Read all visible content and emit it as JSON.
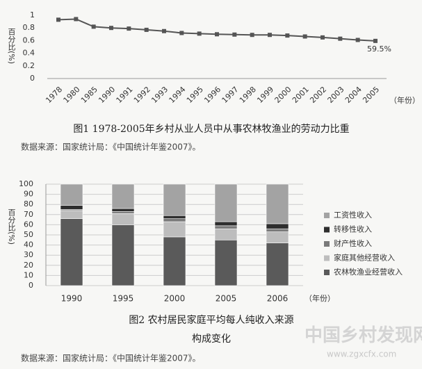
{
  "chart_data": [
    {
      "type": "line",
      "y_label": "百分比(%)",
      "x_unit": "（年份）",
      "categories": [
        "1978",
        "1980",
        "1985",
        "1990",
        "1991",
        "1992",
        "1993",
        "1994",
        "1995",
        "1996",
        "1997",
        "1998",
        "1999",
        "2000",
        "2001",
        "2002",
        "2003",
        "2004",
        "2005"
      ],
      "values": [
        0.93,
        0.94,
        0.82,
        0.8,
        0.79,
        0.77,
        0.75,
        0.72,
        0.71,
        0.7,
        0.695,
        0.69,
        0.69,
        0.68,
        0.665,
        0.65,
        0.63,
        0.61,
        0.595
      ],
      "color": "#555555",
      "annotation": "59.5%",
      "ylim": [
        0,
        1
      ],
      "yticks": [
        0,
        0.2,
        0.4,
        0.6,
        0.8,
        1
      ],
      "grid": false,
      "caption": "图1 1978-2005年乡村从业人员中从事农林牧渔业的劳动力比重",
      "source": "数据来源：国家统计局：《中国统计年鉴2007》。"
    },
    {
      "type": "bar",
      "y_label": "百分比(%)",
      "x_unit": "（年份）",
      "categories": [
        "1990",
        "1995",
        "2000",
        "2005",
        "2006"
      ],
      "series": [
        {
          "name": "农林牧渔业经营收入",
          "color": "#5a5a5a",
          "values": [
            66,
            60,
            48,
            45,
            42
          ]
        },
        {
          "name": "家庭其他经营收入",
          "color": "#bdbdbd",
          "values": [
            8,
            11,
            15,
            11,
            11
          ]
        },
        {
          "name": "财产性收入",
          "color": "#7a7a7a",
          "values": [
            1,
            2,
            3,
            3,
            3
          ]
        },
        {
          "name": "转移性收入",
          "color": "#2e2e2e",
          "values": [
            4,
            3,
            3,
            4,
            5
          ]
        },
        {
          "name": "工资性收入",
          "color": "#a3a3a3",
          "values": [
            21,
            24,
            31,
            37,
            39
          ]
        }
      ],
      "stacked": true,
      "ylim": [
        0,
        100
      ],
      "yticks": [
        0,
        10,
        20,
        30,
        40,
        50,
        60,
        70,
        80,
        90,
        100
      ],
      "grid": true,
      "caption": [
        "图2 农村居民家庭平均每人纯收入来源",
        "构成变化"
      ],
      "source": "数据来源：国家统计局：《中国统计年鉴2007》。"
    }
  ],
  "watermark": {
    "text": "中国乡村发现网",
    "url": "www.zgxcfx.com"
  }
}
